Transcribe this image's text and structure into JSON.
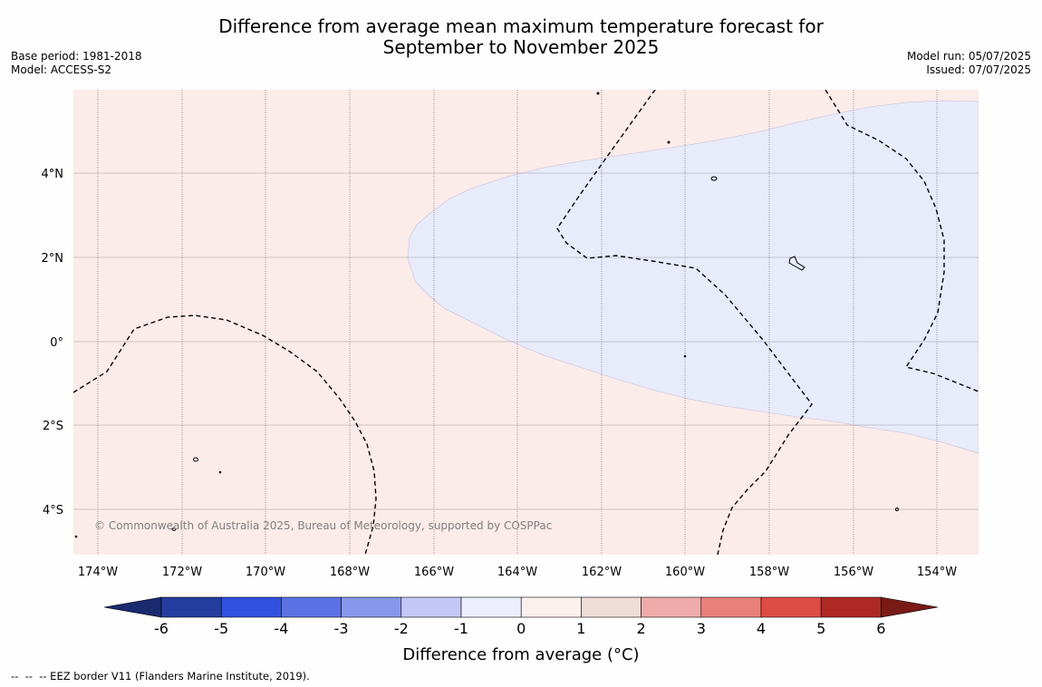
{
  "title_line1": "Difference from average mean maximum temperature forecast for",
  "title_line2": "September to November 2025",
  "base_period": "Base period: 1981-2018",
  "model": "Model: ACCESS-S2",
  "model_run": "Model run: 05/07/2025",
  "issued": "Issued: 07/07/2025",
  "copyright": "© Commonwealth of Australia 2025, Bureau of Meteorology, supported by COSPPac",
  "footnote": "--  --  -- EEZ border V11 (Flanders Marine Institute, 2019).",
  "lat_labels": [
    "4°N",
    "2°N",
    "0°",
    "2°S",
    "4°S"
  ],
  "lon_labels": [
    "174°W",
    "172°W",
    "170°W",
    "168°W",
    "166°W",
    "164°W",
    "162°W",
    "160°W",
    "158°W",
    "156°W",
    "154°W"
  ],
  "colorbar": {
    "label": "Difference from average (°C)",
    "ticks": [
      "-6",
      "-5",
      "-4",
      "-3",
      "-2",
      "-1",
      "0",
      "1",
      "2",
      "3",
      "4",
      "5",
      "6"
    ],
    "colors": [
      "#253d9f",
      "#3152e0",
      "#5a72e3",
      "#8797ec",
      "#c3c8f7",
      "#eceefc",
      "#fcf0ee",
      "#efdcd9",
      "#eeabaa",
      "#e9807b",
      "#df4b45",
      "#af2924"
    ],
    "under_color": "#1a2a6e",
    "over_color": "#7a1a16"
  },
  "map_colors": {
    "warm_fill": "#fbebe9",
    "cool_fill": "#e8ebfa",
    "grid": "#a0a0a0",
    "eez": "#000000"
  }
}
